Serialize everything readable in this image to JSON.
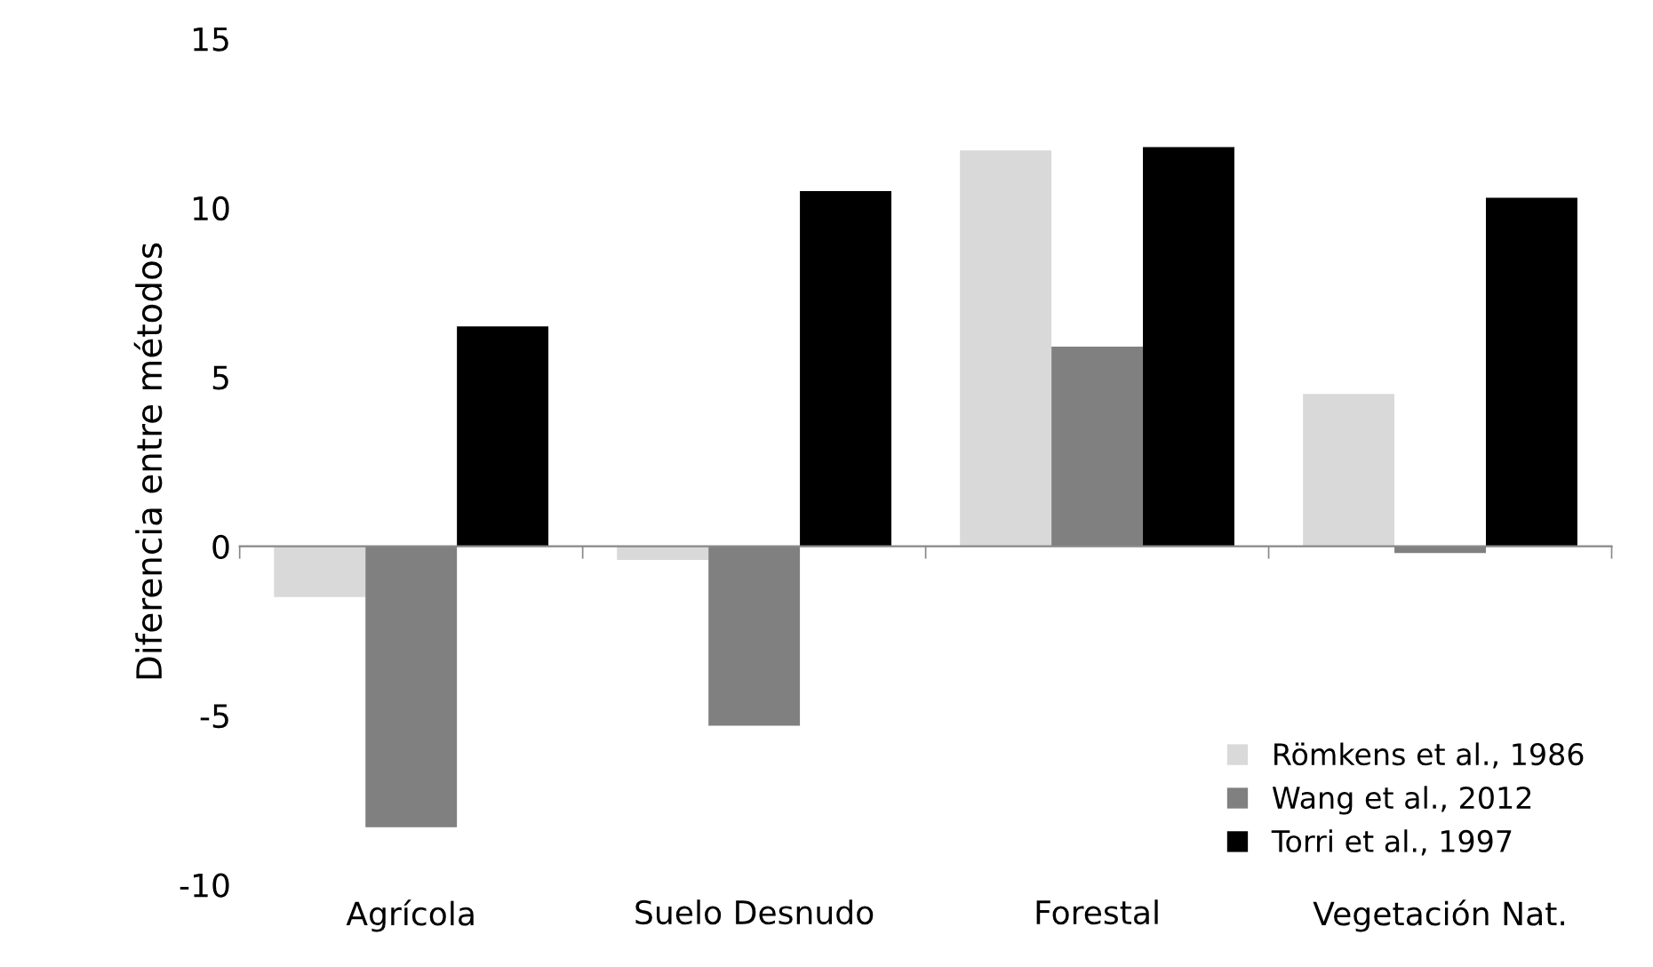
{
  "chart_data": {
    "type": "bar",
    "ylabel": "Diferencia entre métodos",
    "categories": [
      "Agrícola",
      "Suelo Desnudo",
      "Forestal",
      "Vegetación Nat."
    ],
    "series": [
      {
        "name": "Römkens et al., 1986",
        "color": "#d9d9d9",
        "values": [
          -1.5,
          -0.4,
          11.7,
          4.5
        ]
      },
      {
        "name": "Wang et al., 2012",
        "color": "#808080",
        "values": [
          -8.3,
          -5.3,
          5.9,
          -0.2
        ]
      },
      {
        "name": "Torri et al., 1997",
        "color": "#000000",
        "values": [
          6.5,
          10.5,
          11.8,
          10.3
        ]
      }
    ],
    "ylim": [
      -10,
      15
    ],
    "yticks": [
      -10,
      -5,
      0,
      5,
      10,
      15
    ],
    "legend": "bottom right"
  }
}
